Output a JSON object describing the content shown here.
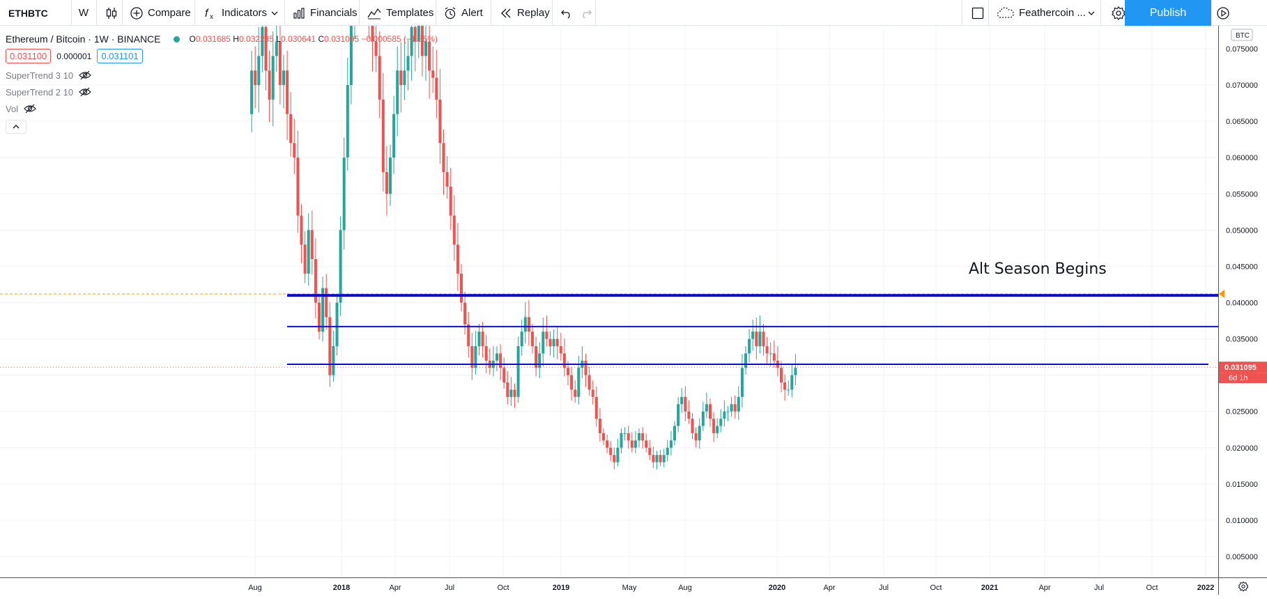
{
  "toolbar": {
    "symbol": "ETHBTC",
    "interval": "W",
    "compare_label": "Compare",
    "indicators_label": "Indicators",
    "financials_label": "Financials",
    "templates_label": "Templates",
    "alert_label": "Alert",
    "replay_label": "Replay",
    "layout_name": "Feathercoin ...",
    "publish_label": "Publish"
  },
  "legend": {
    "title": "Ethereum / Bitcoin · 1W · BINANCE",
    "ohlc": {
      "o": "0.031685",
      "h": "0.032285",
      "l": "0.030641",
      "c": "0.031095",
      "change": "−0.000585 (−1.85%)"
    },
    "bid": "0.031100",
    "spread": "0.000001",
    "ask": "0.031101",
    "indicators": [
      "SuperTrend 3 10",
      "SuperTrend 2 10",
      "Vol"
    ]
  },
  "price_scale": {
    "currency": "BTC",
    "ticks": [
      "0.075000",
      "0.070000",
      "0.065000",
      "0.060000",
      "0.055000",
      "0.050000",
      "0.045000",
      "0.040000",
      "0.035000",
      "0.030000",
      "0.025000",
      "0.020000",
      "0.015000",
      "0.010000",
      "0.005000"
    ],
    "tick_values": [
      0.075,
      0.07,
      0.065,
      0.06,
      0.055,
      0.05,
      0.045,
      0.04,
      0.035,
      0.03,
      0.025,
      0.02,
      0.015,
      0.01,
      0.005
    ],
    "last_price": "0.031095",
    "countdown": "6d 1h"
  },
  "time_scale": {
    "labels": [
      "Aug",
      "2018",
      "Apr",
      "Jul",
      "Oct",
      "2019",
      "May",
      "Aug",
      "2020",
      "Apr",
      "Jul",
      "Oct",
      "2021",
      "Apr",
      "Jul",
      "Oct",
      "2022"
    ],
    "bold": [
      "2018",
      "2019",
      "2020",
      "2021",
      "2022"
    ]
  },
  "annotation": "Alt Season Begins",
  "horizontal_levels": [
    0.041,
    0.0367,
    0.0315
  ],
  "alert_level": 0.0412,
  "colors": {
    "up": "#26a69a",
    "down": "#ef5350",
    "level": "#0b0bdb",
    "accent": "#2196f3",
    "alert": "#ff9800"
  }
}
